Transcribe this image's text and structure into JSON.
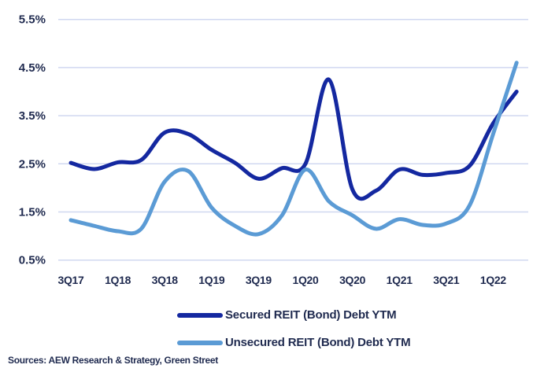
{
  "chart_data": {
    "type": "line",
    "title": "",
    "xlabel": "",
    "ylabel": "",
    "ylim": [
      0.5,
      5.5
    ],
    "y_ticks": [
      "0.5%",
      "1.5%",
      "2.5%",
      "3.5%",
      "4.5%",
      "5.5%"
    ],
    "y_tick_values": [
      0.5,
      1.5,
      2.5,
      3.5,
      4.5,
      5.5
    ],
    "grid": "horizontal",
    "legend_position": "bottom",
    "categories": [
      "3Q17",
      "4Q17",
      "1Q18",
      "2Q18",
      "3Q18",
      "4Q18",
      "1Q19",
      "2Q19",
      "3Q19",
      "4Q19",
      "1Q20",
      "2Q20",
      "3Q20",
      "4Q20",
      "1Q21",
      "2Q21",
      "3Q21",
      "4Q21",
      "1Q22",
      "2Q22"
    ],
    "x_tick_labels": [
      "3Q17",
      "1Q18",
      "3Q18",
      "1Q19",
      "3Q19",
      "1Q20",
      "3Q20",
      "1Q21",
      "3Q21",
      "1Q22"
    ],
    "series": [
      {
        "name": "Secured REIT (Bond) Debt YTM",
        "color": "#1428a0",
        "values": [
          2.52,
          2.39,
          2.53,
          2.58,
          3.15,
          3.12,
          2.79,
          2.52,
          2.19,
          2.41,
          2.5,
          4.25,
          1.97,
          1.94,
          2.38,
          2.27,
          2.31,
          2.46,
          3.34,
          4.0
        ]
      },
      {
        "name": "Unsecured REIT (Bond) Debt YTM",
        "color": "#5b9bd5",
        "values": [
          1.33,
          1.21,
          1.1,
          1.15,
          2.13,
          2.35,
          1.59,
          1.21,
          1.04,
          1.43,
          2.38,
          1.72,
          1.43,
          1.15,
          1.35,
          1.23,
          1.26,
          1.64,
          3.12,
          4.6
        ]
      }
    ]
  },
  "source": "Sources: AEW Research & Strategy, Green Street",
  "colors": {
    "text": "#1f2a4f",
    "grid": "#d0d8f0"
  }
}
